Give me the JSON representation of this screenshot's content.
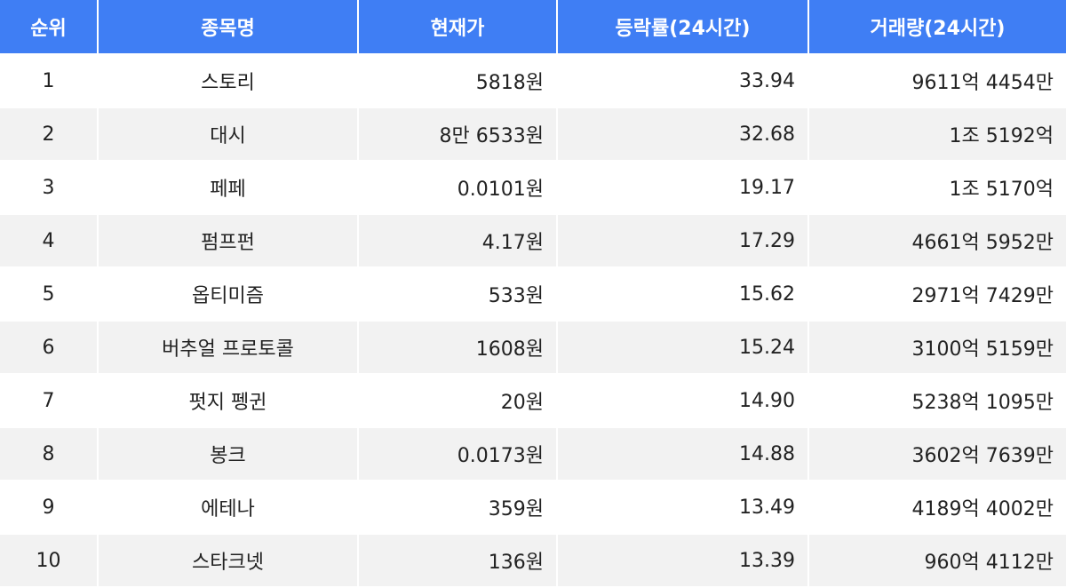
{
  "table": {
    "header": [
      "순위",
      "종목명",
      "현재가",
      "등락률(24시간)",
      "거래량(24시간)"
    ],
    "rows": [
      [
        "1",
        "스토리",
        "5818원",
        "33.94",
        "9611억 4454만"
      ],
      [
        "2",
        "대시",
        "8만 6533원",
        "32.68",
        "1조 5192억"
      ],
      [
        "3",
        "페페",
        "0.0101원",
        "19.17",
        "1조 5170억"
      ],
      [
        "4",
        "펌프펀",
        "4.17원",
        "17.29",
        "4661억 5952만"
      ],
      [
        "5",
        "옵티미즘",
        "533원",
        "15.62",
        "2971억 7429만"
      ],
      [
        "6",
        "버추얼 프로토콜",
        "1608원",
        "15.24",
        "3100억 5159만"
      ],
      [
        "7",
        "펏지 펭귄",
        "20원",
        "14.90",
        "5238억 1095만"
      ],
      [
        "8",
        "봉크",
        "0.0173원",
        "14.88",
        "3602억 7639만"
      ],
      [
        "9",
        "에테나",
        "359원",
        "13.49",
        "4189억 4002만"
      ],
      [
        "10",
        "스타크넷",
        "136원",
        "13.39",
        "960억 4112만"
      ]
    ]
  }
}
